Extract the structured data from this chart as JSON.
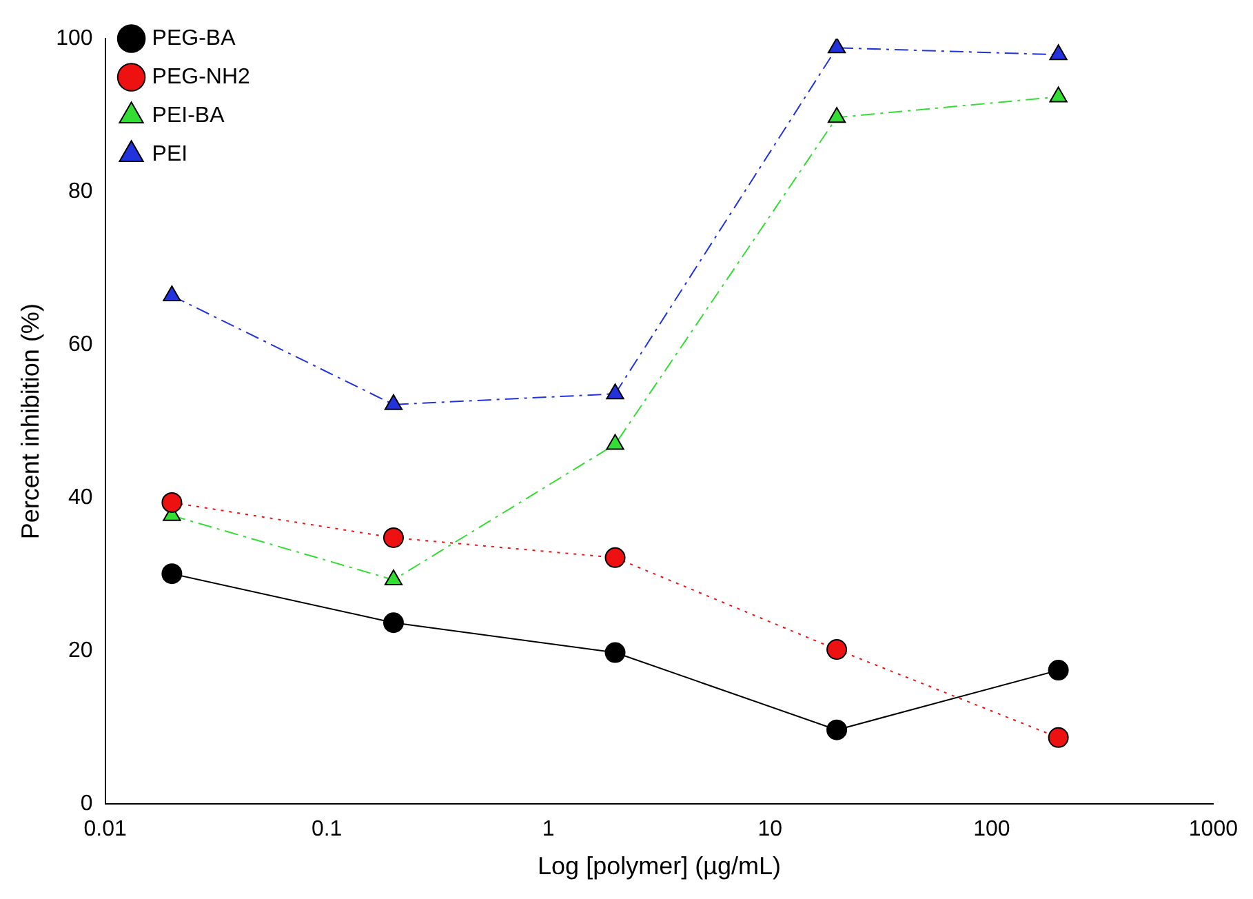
{
  "chart_data": {
    "type": "line",
    "xlabel": "Log [polymer] (µg/mL)",
    "ylabel": "Percent inhibition (%)",
    "x": [
      0.02,
      0.2,
      2,
      20,
      200
    ],
    "series": [
      {
        "name": "PEG-BA",
        "color": "#000000",
        "marker": "circle",
        "line_style": "solid",
        "values": [
          30.1,
          23.7,
          19.8,
          9.7,
          17.5
        ]
      },
      {
        "name": "PEG-NH2",
        "color": "#ee1111",
        "marker": "circle",
        "line_style": "dotted",
        "values": [
          39.4,
          34.8,
          32.2,
          20.2,
          8.7
        ]
      },
      {
        "name": "PEI-BA",
        "color": "#33dd33",
        "marker": "triangle",
        "line_style": "dashed",
        "values": [
          37.7,
          29.3,
          47.0,
          89.7,
          92.4
        ]
      },
      {
        "name": "PEI",
        "color": "#2233dd",
        "marker": "triangle",
        "line_style": "dashed",
        "values": [
          66.4,
          52.2,
          53.6,
          98.8,
          97.9
        ]
      }
    ],
    "log": "x",
    "xlim": [
      0.01,
      1000
    ],
    "xticks": [
      0.01,
      0.1,
      1,
      10,
      100,
      1000
    ],
    "ylim": [
      0,
      100
    ],
    "yticks": [
      0,
      20,
      40,
      60,
      80,
      100
    ],
    "grid": false,
    "legend": "top left"
  }
}
